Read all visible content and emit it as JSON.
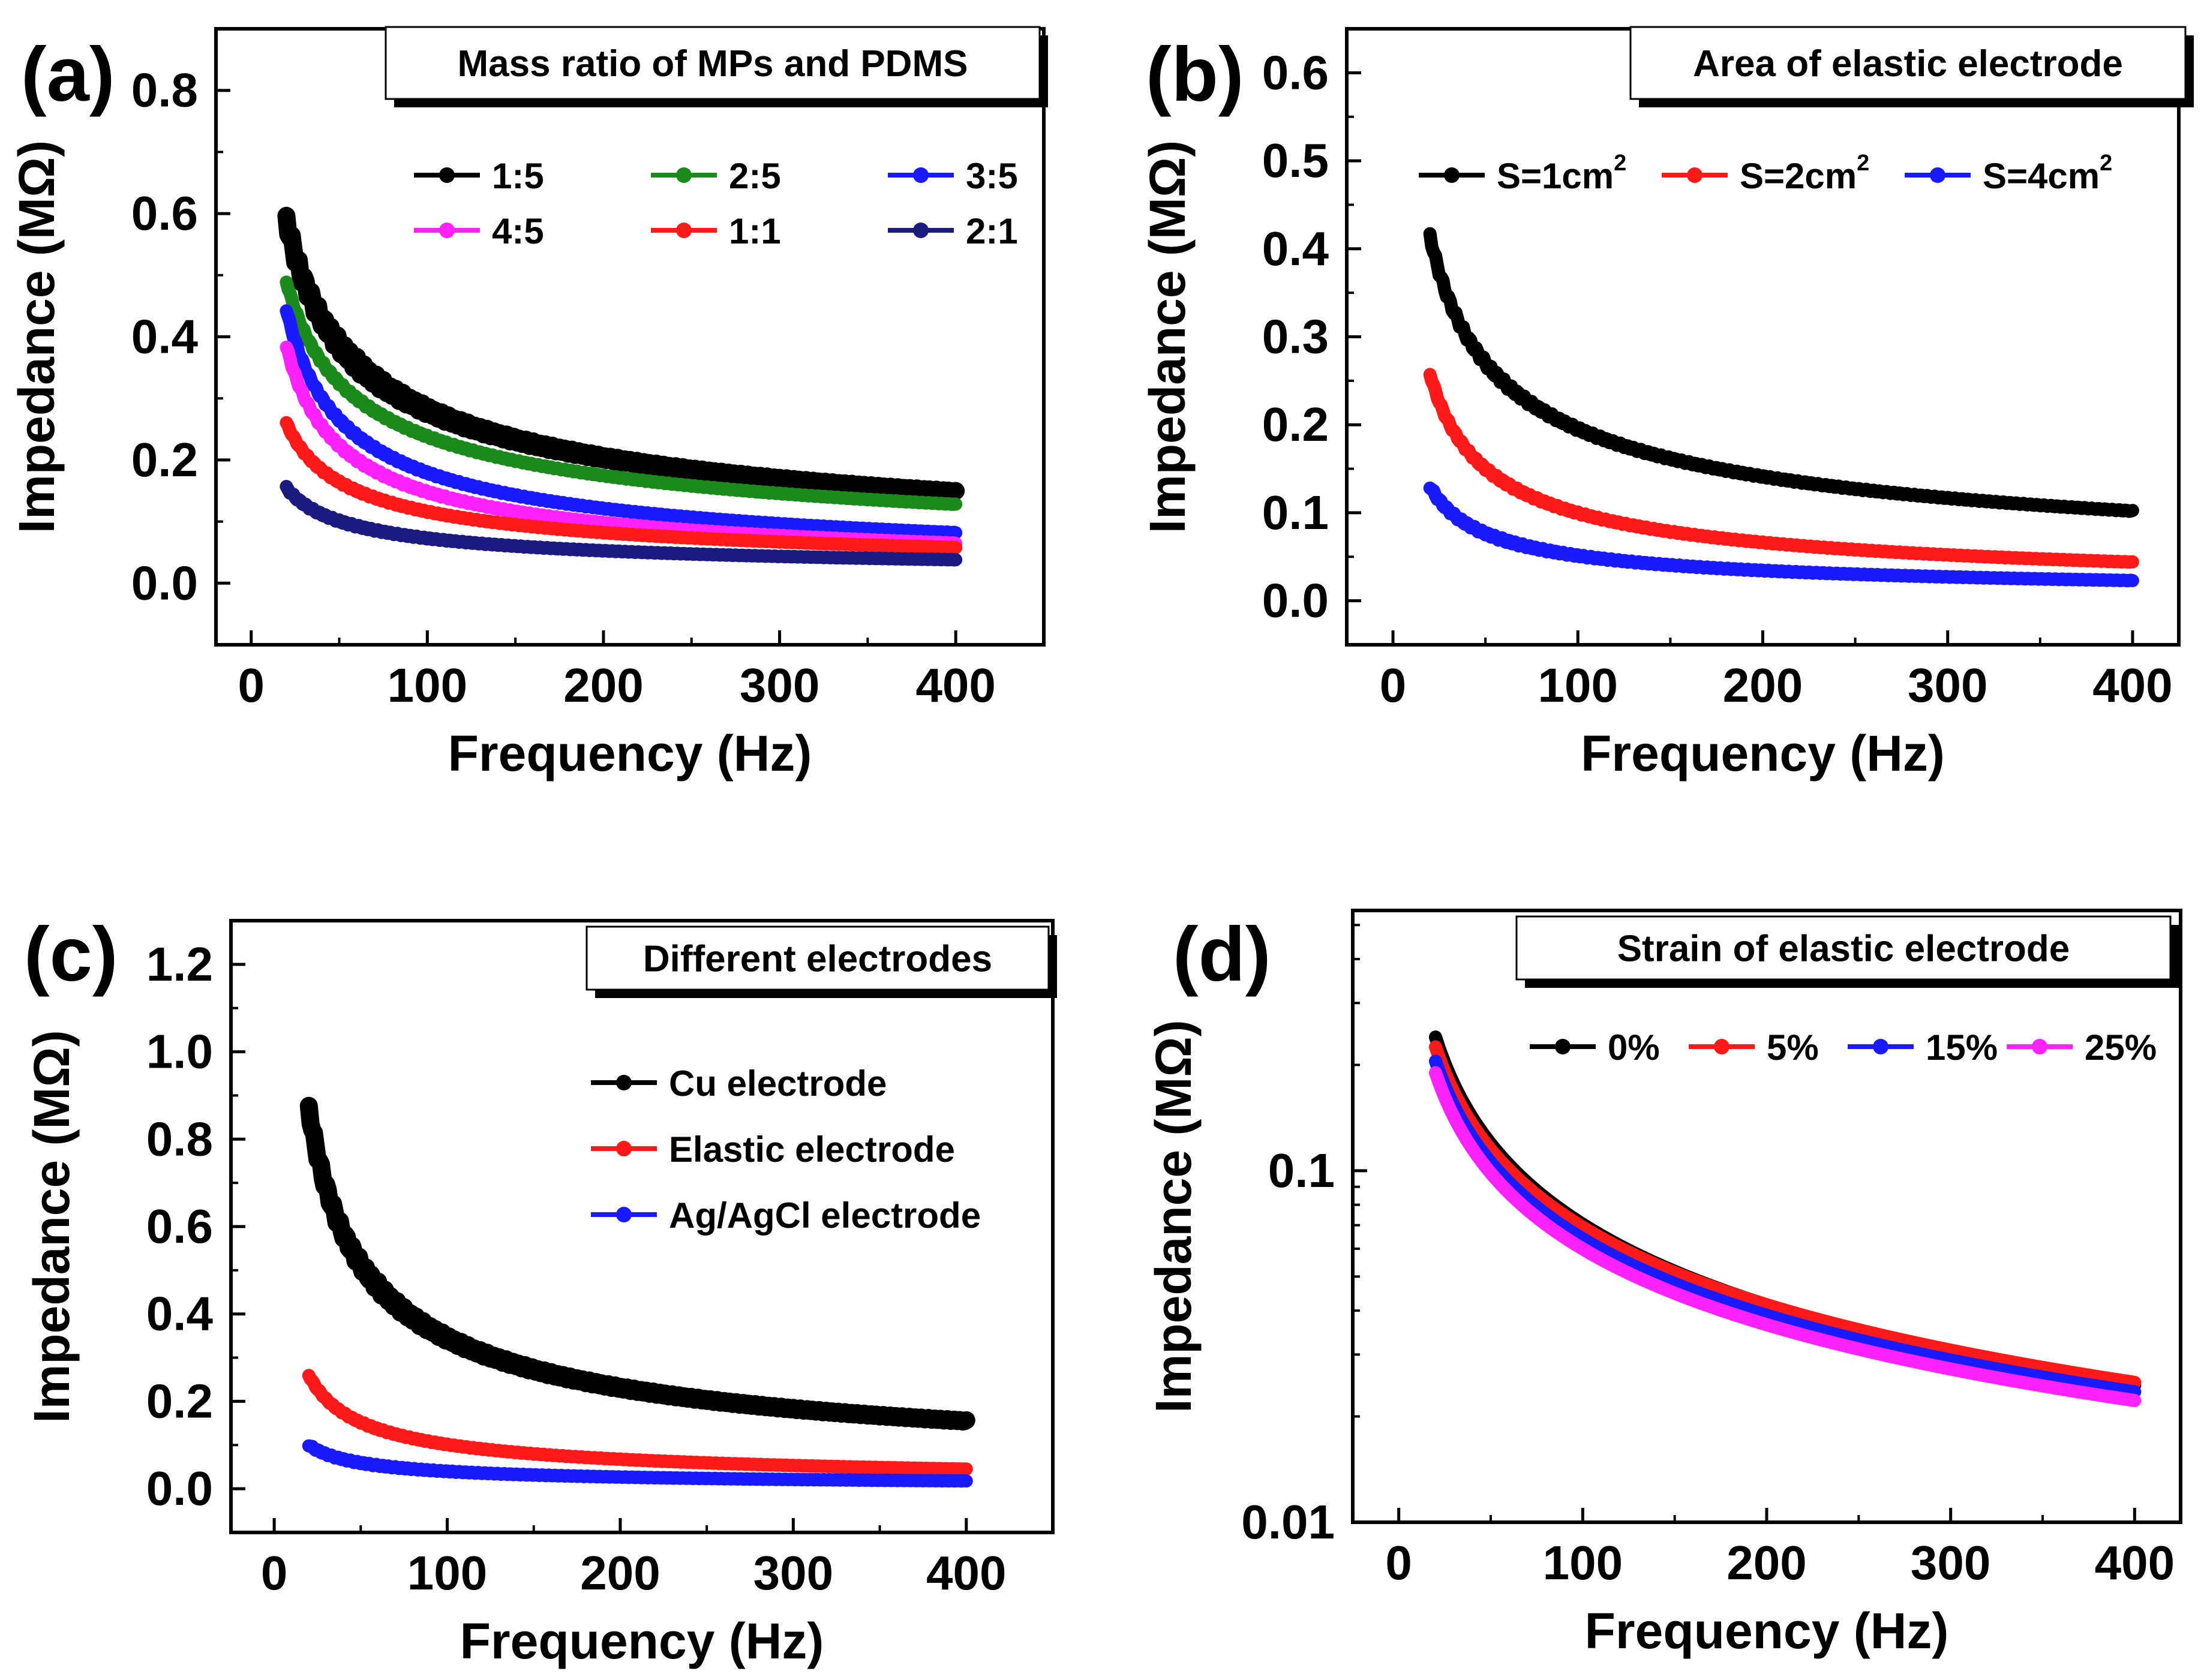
{
  "chart_data": [
    {
      "panel": "(a)",
      "type": "line",
      "title": "Mass ratio of MPs and PDMS",
      "xlabel": "Frequency (Hz)",
      "ylabel": "Impedance (MΩ)",
      "xlim": [
        -20,
        450
      ],
      "ylim": [
        -0.1,
        0.9
      ],
      "xticks": [
        "0",
        "100",
        "200",
        "300",
        "400"
      ],
      "xtick_values": [
        0,
        100,
        200,
        300,
        400
      ],
      "yticks": [
        "0.0",
        "0.2",
        "0.4",
        "0.6",
        "0.8"
      ],
      "ytick_values": [
        0,
        0.2,
        0.4,
        0.6,
        0.8
      ],
      "yscale": "linear",
      "legend_position": "top",
      "legend_columns": 3,
      "series": [
        {
          "name": "1:5",
          "color": "#000000",
          "start": [
            20,
            0.59
          ],
          "end": [
            400,
            0.148
          ],
          "noise": 0.012
        },
        {
          "name": "2:5",
          "color": "#1a8a1a",
          "start": [
            20,
            0.49
          ],
          "end": [
            400,
            0.128
          ],
          "noise": 0.003
        },
        {
          "name": "3:5",
          "color": "#1a1aff",
          "start": [
            20,
            0.445
          ],
          "end": [
            400,
            0.082
          ],
          "noise": 0.003
        },
        {
          "name": "4:5",
          "color": "#ff22ff",
          "start": [
            20,
            0.385
          ],
          "end": [
            400,
            0.065
          ],
          "noise": 0.003
        },
        {
          "name": "1:1",
          "color": "#ff1a1a",
          "start": [
            20,
            0.26
          ],
          "end": [
            400,
            0.058
          ],
          "noise": 0.002
        },
        {
          "name": "2:1",
          "color": "#1a1a80",
          "start": [
            20,
            0.155
          ],
          "end": [
            400,
            0.038
          ],
          "noise": 0.002
        }
      ]
    },
    {
      "panel": "(b)",
      "type": "line",
      "title": "Area of elastic electrode",
      "xlabel": "Frequency (Hz)",
      "ylabel": "Impedance (MΩ)",
      "xlim": [
        -25,
        425
      ],
      "ylim": [
        -0.05,
        0.65
      ],
      "xticks": [
        "0",
        "100",
        "200",
        "300",
        "400"
      ],
      "xtick_values": [
        0,
        100,
        200,
        300,
        400
      ],
      "yticks": [
        "0.0",
        "0.1",
        "0.2",
        "0.3",
        "0.4",
        "0.5",
        "0.6"
      ],
      "ytick_values": [
        0,
        0.1,
        0.2,
        0.3,
        0.4,
        0.5,
        0.6
      ],
      "yscale": "linear",
      "legend_position": "top",
      "legend_columns": 3,
      "series": [
        {
          "name": "S=1cm",
          "sup": "2",
          "color": "#000000",
          "start": [
            20,
            0.415
          ],
          "end": [
            400,
            0.102
          ],
          "noise": 0.004
        },
        {
          "name": "S=2cm",
          "sup": "2",
          "color": "#ff1a1a",
          "start": [
            20,
            0.258
          ],
          "end": [
            400,
            0.044
          ],
          "noise": 0.002
        },
        {
          "name": "S=4cm",
          "sup": "2",
          "color": "#1a1aff",
          "start": [
            20,
            0.13
          ],
          "end": [
            400,
            0.023
          ],
          "noise": 0.002
        }
      ]
    },
    {
      "panel": "(c)",
      "type": "line",
      "title": "Different electrodes",
      "xlabel": "Frequency (Hz)",
      "ylabel": "Impedance (MΩ)",
      "xlim": [
        -25,
        450
      ],
      "ylim": [
        -0.1,
        1.3
      ],
      "xticks": [
        "0",
        "100",
        "200",
        "300",
        "400"
      ],
      "xtick_values": [
        0,
        100,
        200,
        300,
        400
      ],
      "yticks": [
        "0.0",
        "0.2",
        "0.4",
        "0.6",
        "0.8",
        "1.0",
        "1.2"
      ],
      "ytick_values": [
        0,
        0.2,
        0.4,
        0.6,
        0.8,
        1.0,
        1.2
      ],
      "yscale": "linear",
      "legend_position": "right",
      "legend_columns": 1,
      "series": [
        {
          "name": "Cu electrode",
          "color": "#000000",
          "start": [
            20,
            0.87
          ],
          "end": [
            400,
            0.155
          ],
          "noise": 0.012
        },
        {
          "name": "Elastic electrode",
          "color": "#ff1a1a",
          "start": [
            20,
            0.26
          ],
          "end": [
            400,
            0.045
          ],
          "noise": 0.002
        },
        {
          "name": "Ag/AgCl  electrode",
          "color": "#1a1aff",
          "start": [
            20,
            0.1
          ],
          "end": [
            400,
            0.018
          ],
          "noise": 0.002
        }
      ]
    },
    {
      "panel": "(d)",
      "type": "line",
      "title": "Strain of elastic electrode",
      "xlabel": "Frequency (Hz)",
      "ylabel": "Impedance (MΩ)",
      "xlim": [
        -25,
        425
      ],
      "ylim": [
        0.01,
        0.55
      ],
      "xticks": [
        "0",
        "100",
        "200",
        "300",
        "400"
      ],
      "xtick_values": [
        0,
        100,
        200,
        300,
        400
      ],
      "yticks": [
        "0.01",
        "0.1"
      ],
      "ytick_values": [
        0.01,
        0.1
      ],
      "yscale": "log",
      "legend_position": "top",
      "legend_columns": 4,
      "series": [
        {
          "name": "0%",
          "color": "#000000",
          "start": [
            20,
            0.24
          ],
          "end": [
            400,
            0.0245
          ],
          "noise": 0.0
        },
        {
          "name": "5%",
          "color": "#ff1a1a",
          "start": [
            20,
            0.225
          ],
          "end": [
            400,
            0.025
          ],
          "noise": 0.0
        },
        {
          "name": "15%",
          "color": "#1a1aff",
          "start": [
            20,
            0.205
          ],
          "end": [
            400,
            0.0235
          ],
          "noise": 0.0
        },
        {
          "name": "25%",
          "color": "#ff22ff",
          "start": [
            20,
            0.19
          ],
          "end": [
            400,
            0.0222
          ],
          "noise": 0.0
        }
      ]
    }
  ]
}
